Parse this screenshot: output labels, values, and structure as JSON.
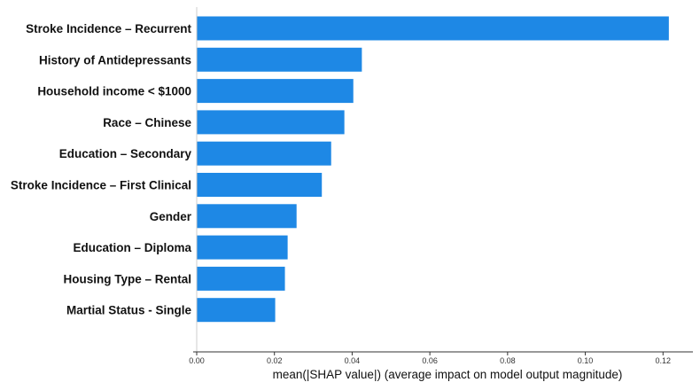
{
  "chart_data": {
    "type": "bar",
    "orientation": "horizontal",
    "categories": [
      "Stroke Incidence – Recurrent",
      "History of Antidepressants",
      "Household income < $1000",
      "Race – Chinese",
      "Education – Secondary",
      "Stroke Incidence – First Clinical",
      "Gender",
      "Education – Diploma",
      "Housing Type – Rental",
      "Martial Status -  Single"
    ],
    "values": [
      0.1215,
      0.0425,
      0.0403,
      0.038,
      0.0346,
      0.0322,
      0.0257,
      0.0234,
      0.0227,
      0.0202
    ],
    "xlabel": "mean(|SHAP value|) (average impact on model output magnitude)",
    "ylabel": "",
    "xlim": [
      0,
      0.1245
    ],
    "xticks": [
      0.0,
      0.02,
      0.04,
      0.06,
      0.08,
      0.1,
      0.12
    ],
    "xtick_labels": [
      "0.00",
      "0.02",
      "0.04",
      "0.06",
      "0.08",
      "0.10",
      "0.12"
    ],
    "bar_color": "#1e88e5",
    "grid": false
  }
}
